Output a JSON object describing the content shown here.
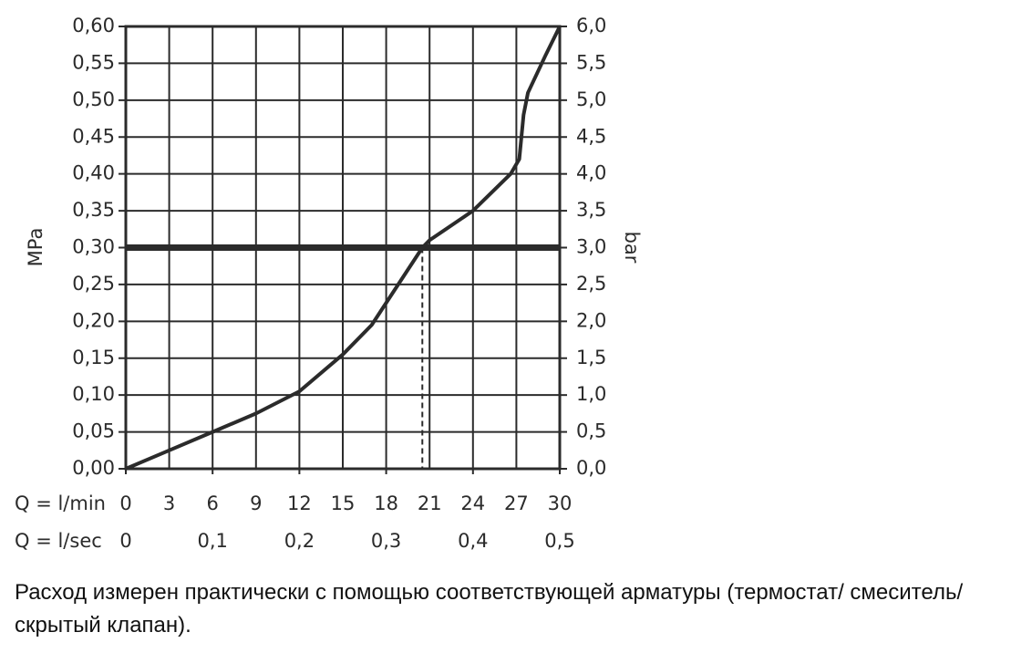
{
  "chart_data": {
    "type": "line",
    "x_label": "Q = l/min",
    "x2_label": "Q = l/sec",
    "y_label": "MPa",
    "y2_label": "bar",
    "note": "Расход измерен практически с помощью соответствующей арматуры (термостат/ смеситель/скрытый клапан).",
    "x": [
      0,
      3,
      6,
      9,
      12,
      15,
      17,
      18.5,
      20.5,
      21,
      24,
      26.6,
      27.2,
      27.5,
      27.8,
      29,
      30
    ],
    "series": [
      {
        "color": "#2b2b2b",
        "values": [
          0,
          0.025,
          0.05,
          0.075,
          0.105,
          0.155,
          0.195,
          0.24,
          0.3,
          0.31,
          0.35,
          0.4,
          0.42,
          0.48,
          0.51,
          0.56,
          0.6
        ]
      }
    ],
    "xlim": [
      0,
      30
    ],
    "xticks": [
      0,
      3,
      6,
      9,
      12,
      15,
      18,
      21,
      24,
      27,
      30
    ],
    "x2lim": [
      0,
      0.5
    ],
    "x2ticks": [
      0,
      {
        "value": 0.1,
        "label": "0,1"
      },
      {
        "value": 0.2,
        "label": "0,2"
      },
      {
        "value": 0.3,
        "label": "0,3"
      },
      {
        "value": 0.4,
        "label": "0,4"
      },
      {
        "value": 0.5,
        "label": "0,5"
      }
    ],
    "ylim": [
      0,
      0.6
    ],
    "yticks": [
      {
        "value": 0,
        "label": "0,00"
      },
      {
        "value": 0.05,
        "label": "0,05"
      },
      {
        "value": 0.1,
        "label": "0,10"
      },
      {
        "value": 0.15,
        "label": "0,15"
      },
      {
        "value": 0.2,
        "label": "0,20"
      },
      {
        "value": 0.25,
        "label": "0,25"
      },
      {
        "value": 0.3,
        "label": "0,30"
      },
      {
        "value": 0.35,
        "label": "0,35"
      },
      {
        "value": 0.4,
        "label": "0,40"
      },
      {
        "value": 0.45,
        "label": "0,45"
      },
      {
        "value": 0.5,
        "label": "0,50"
      },
      {
        "value": 0.55,
        "label": "0,55"
      },
      {
        "value": 0.6,
        "label": "0,60"
      }
    ],
    "y2lim": [
      0,
      6
    ],
    "y2ticks": [
      {
        "value": 0,
        "label": "0,0"
      },
      {
        "value": 0.5,
        "label": "0,5"
      },
      {
        "value": 1,
        "label": "1,0"
      },
      {
        "value": 1.5,
        "label": "1,5"
      },
      {
        "value": 2,
        "label": "2,0"
      },
      {
        "value": 2.5,
        "label": "2,5"
      },
      {
        "value": 3,
        "label": "3,0"
      },
      {
        "value": 3.5,
        "label": "3,5"
      },
      {
        "value": 4,
        "label": "4,0"
      },
      {
        "value": 4.5,
        "label": "4,5"
      },
      {
        "value": 5,
        "label": "5,0"
      },
      {
        "value": 5.5,
        "label": "5,5"
      },
      {
        "value": 6,
        "label": "6,0"
      }
    ],
    "reference": {
      "y": 0.3,
      "x": 20.5
    },
    "grid": true
  }
}
